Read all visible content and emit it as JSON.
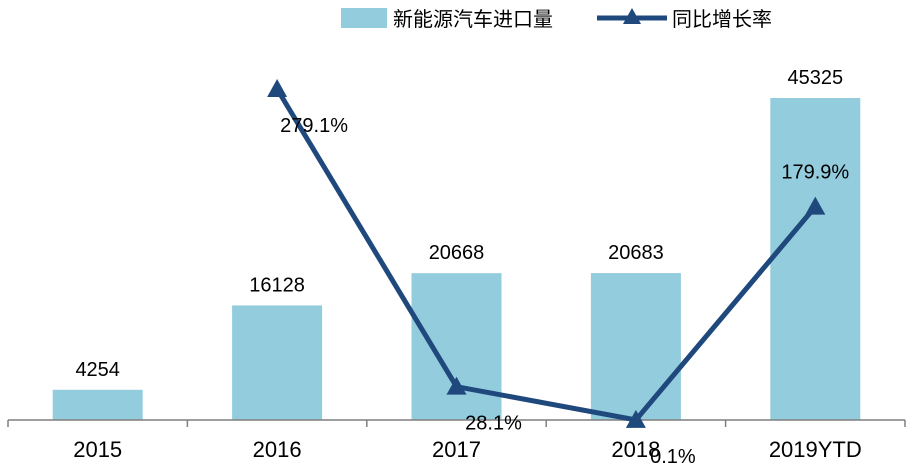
{
  "chart_data": {
    "type": "bar",
    "categories": [
      "2015",
      "2016",
      "2017",
      "2018",
      "2019YTD"
    ],
    "series": [
      {
        "name": "新能源汽车进口量",
        "type": "bar",
        "color": "#93ccdd",
        "values": [
          4254,
          16128,
          20668,
          20683,
          45325
        ],
        "labels": [
          "4254",
          "16128",
          "20668",
          "20683",
          "45325"
        ]
      },
      {
        "name": "同比增长率",
        "type": "line",
        "marker": "triangle",
        "color": "#1f497d",
        "values": [
          null,
          279.1,
          28.1,
          0.1,
          179.9
        ],
        "labels": [
          "",
          "279.1%",
          "28.1%",
          "0.1%",
          "179.9%"
        ]
      }
    ],
    "ylim_left": [
      0,
      45325
    ],
    "ylim_right": [
      0,
      279.1
    ],
    "legend_position": "top-right",
    "grid": false
  }
}
